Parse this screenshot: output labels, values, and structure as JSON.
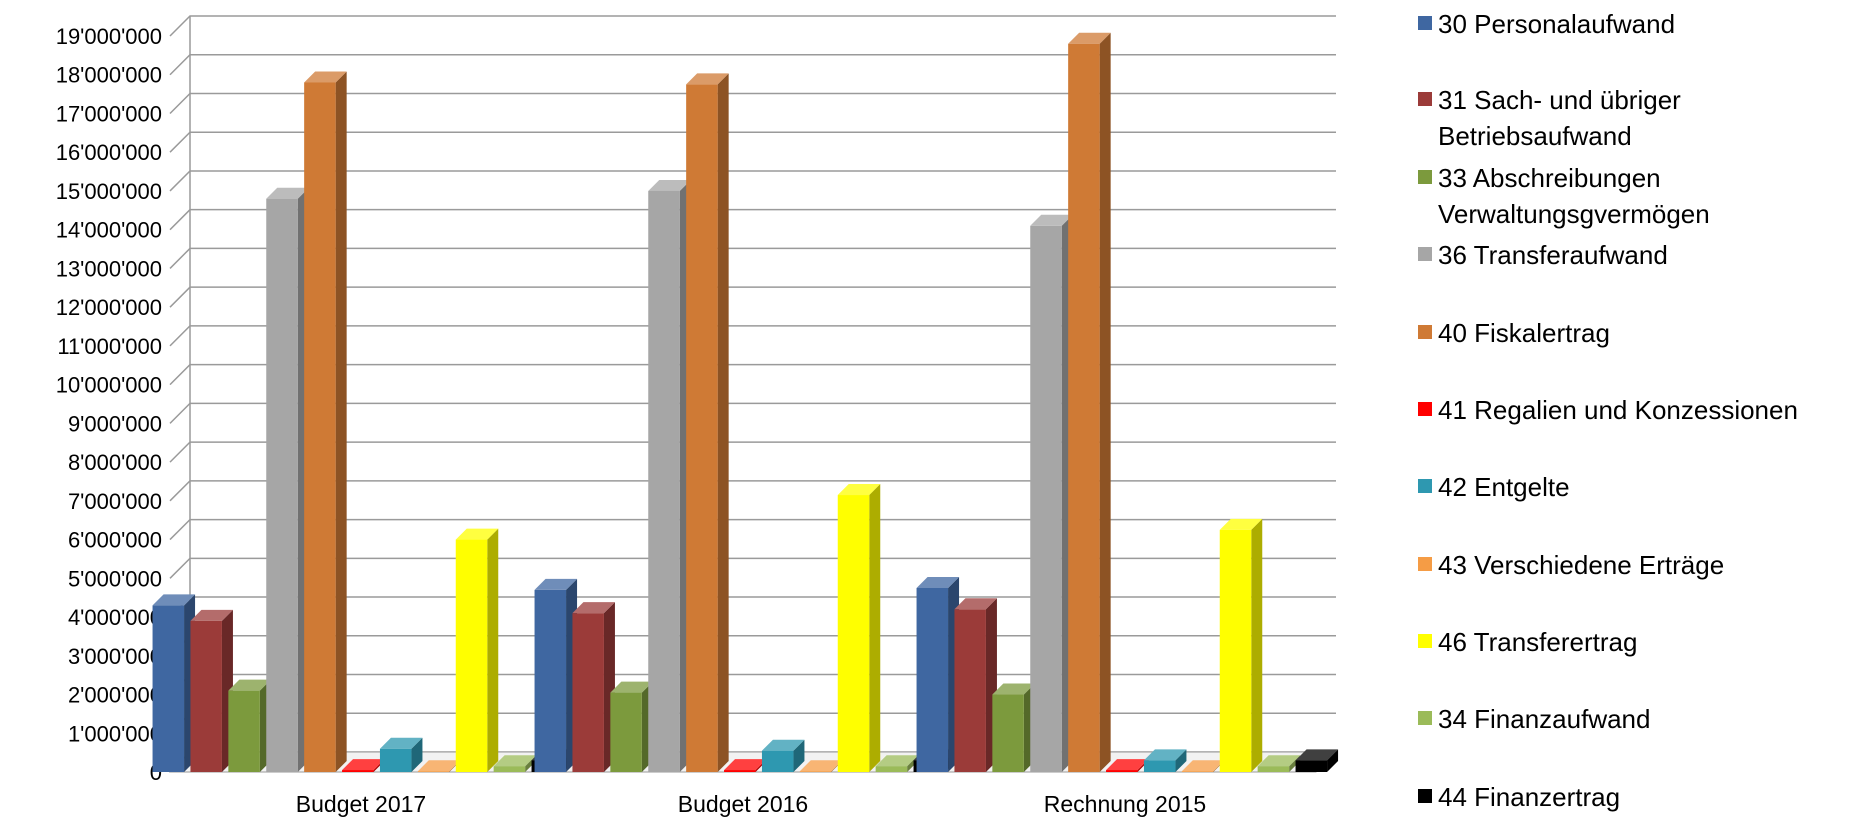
{
  "chart_data": {
    "type": "bar",
    "categories": [
      "Budget 2017",
      "Budget 2016",
      "Rechnung 2015"
    ],
    "ylim": [
      0,
      19000000
    ],
    "y_ticks": [
      "0",
      "1'000'000",
      "2'000'000",
      "3'000'000",
      "4'000'000",
      "5'000'000",
      "6'000'000",
      "7'000'000",
      "8'000'000",
      "9'000'000",
      "10'000'000",
      "11'000'000",
      "12'000'000",
      "13'000'000",
      "14'000'000",
      "15'000'000",
      "16'000'000",
      "17'000'000",
      "18'000'000",
      "19'000'000"
    ],
    "grid": true,
    "legend_position": "right",
    "series": [
      {
        "name": "30 Personalaufwand",
        "color": "#3F67A1",
        "values": [
          4300000,
          4700000,
          4750000
        ]
      },
      {
        "name": "31 Sach- und übriger\nBetriebsaufwand",
        "color": "#9B3B39",
        "values": [
          3900000,
          4100000,
          4200000
        ]
      },
      {
        "name": "33 Abschreibungen\nVerwaltungsgvermögen",
        "color": "#7C9A3D",
        "values": [
          2100000,
          2050000,
          2000000
        ]
      },
      {
        "name": "36 Transferaufwand",
        "color": "#A6A6A6",
        "values": [
          14800000,
          15000000,
          14100000
        ]
      },
      {
        "name": "40 Fiskalertrag",
        "color": "#CF7A35",
        "values": [
          17800000,
          17750000,
          18800000
        ]
      },
      {
        "name": "41 Regalien und Konzessionen",
        "color": "#FF0000",
        "values": [
          50000,
          50000,
          50000
        ]
      },
      {
        "name": "42 Entgelte",
        "color": "#2E98B0",
        "values": [
          600000,
          550000,
          300000
        ]
      },
      {
        "name": "43 Verschiedene Erträge",
        "color": "#F59C45",
        "values": [
          20000,
          20000,
          20000
        ]
      },
      {
        "name": "46 Transferertrag",
        "color": "#FFFF00",
        "values": [
          6000000,
          7150000,
          6250000
        ]
      },
      {
        "name": "34 Finanzaufwand",
        "color": "#9BBB59",
        "values": [
          150000,
          150000,
          150000
        ]
      },
      {
        "name": "44 Finanzertrag",
        "color": "#000000",
        "values": [
          300000,
          300000,
          300000
        ]
      }
    ]
  }
}
